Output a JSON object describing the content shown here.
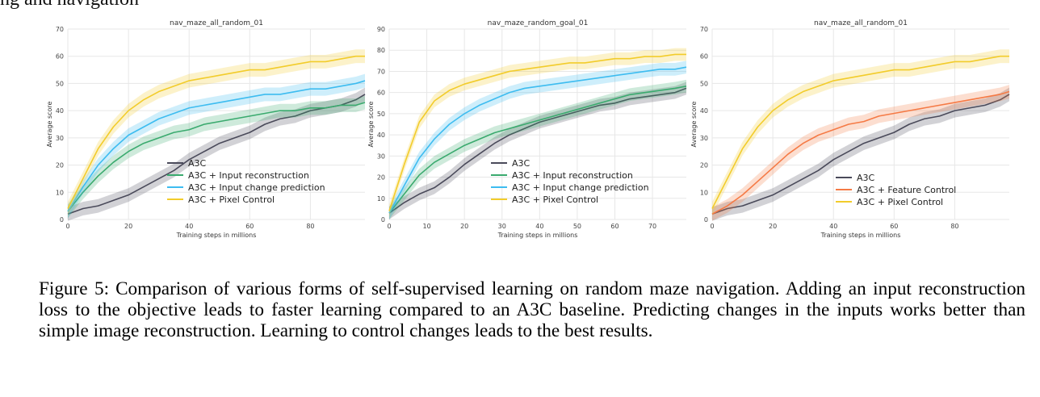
{
  "top_text": "ng and navigation",
  "caption": {
    "label": "Figure 5:",
    "text": "Comparison of various forms of self-supervised learning on random maze navigation. Adding an input reconstruction loss to the objective leads to faster learning compared to an A3C baseline. Predicting changes in the inputs works better than simple image reconstruction. Learning to control changes leads to the best results."
  },
  "colors": {
    "A3C": "#4a4a5a",
    "Input reconstruction": "#3aaa6e",
    "Input change prediction": "#3dbcf0",
    "Pixel Control": "#f2cc2b",
    "Feature Control": "#f57a45"
  },
  "chart_data": [
    {
      "type": "line",
      "title": "nav_maze_all_random_01",
      "xlabel": "Training steps in millions",
      "ylabel": "Average score",
      "xlim": [
        0,
        98
      ],
      "ylim": [
        0,
        70
      ],
      "xticks": [
        0,
        20,
        40,
        60,
        80
      ],
      "yticks": [
        0,
        10,
        20,
        30,
        40,
        50,
        60,
        70
      ],
      "grid": true,
      "legend_position": "bottom-center",
      "x": [
        0,
        5,
        10,
        15,
        20,
        25,
        30,
        35,
        40,
        45,
        50,
        55,
        60,
        65,
        70,
        75,
        80,
        85,
        90,
        95,
        98
      ],
      "series": [
        {
          "name": "A3C",
          "color": "#4a4a5a",
          "values": [
            2,
            4,
            5,
            7,
            9,
            12,
            15,
            18,
            22,
            25,
            28,
            30,
            32,
            35,
            37,
            38,
            40,
            41,
            42,
            44,
            46
          ]
        },
        {
          "name": "A3C + Input reconstruction",
          "color": "#3aaa6e",
          "values": [
            3,
            10,
            16,
            21,
            25,
            28,
            30,
            32,
            33,
            35,
            36,
            37,
            38,
            39,
            40,
            40,
            41,
            41,
            42,
            42,
            43
          ]
        },
        {
          "name": "A3C + Input change prediction",
          "color": "#3dbcf0",
          "values": [
            3,
            12,
            20,
            26,
            31,
            34,
            37,
            39,
            41,
            42,
            43,
            44,
            45,
            46,
            46,
            47,
            48,
            48,
            49,
            50,
            51
          ]
        },
        {
          "name": "A3C + Pixel Control",
          "color": "#f2cc2b",
          "values": [
            4,
            15,
            26,
            34,
            40,
            44,
            47,
            49,
            51,
            52,
            53,
            54,
            55,
            55,
            56,
            57,
            58,
            58,
            59,
            60,
            60
          ]
        }
      ],
      "band_halfwidth": 2.5
    },
    {
      "type": "line",
      "title": "nav_maze_random_goal_01",
      "xlabel": "Training steps in millions",
      "ylabel": "Average score",
      "xlim": [
        0,
        79
      ],
      "ylim": [
        0,
        90
      ],
      "xticks": [
        0,
        10,
        20,
        30,
        40,
        50,
        60,
        70
      ],
      "yticks": [
        0,
        10,
        20,
        30,
        40,
        50,
        60,
        70,
        80,
        90
      ],
      "grid": true,
      "legend_position": "bottom-right",
      "x": [
        0,
        4,
        8,
        12,
        16,
        20,
        24,
        28,
        32,
        36,
        40,
        44,
        48,
        52,
        56,
        60,
        64,
        68,
        72,
        76,
        79
      ],
      "series": [
        {
          "name": "A3C",
          "color": "#4a4a5a",
          "values": [
            3,
            8,
            12,
            15,
            20,
            26,
            31,
            36,
            40,
            43,
            46,
            48,
            50,
            52,
            54,
            55,
            57,
            58,
            59,
            60,
            62
          ]
        },
        {
          "name": "A3C + Input reconstruction",
          "color": "#3aaa6e",
          "values": [
            3,
            12,
            21,
            27,
            31,
            35,
            38,
            41,
            43,
            45,
            47,
            49,
            51,
            53,
            55,
            57,
            59,
            60,
            61,
            62,
            63
          ]
        },
        {
          "name": "A3C + Input change prediction",
          "color": "#3dbcf0",
          "values": [
            3,
            16,
            29,
            38,
            45,
            50,
            54,
            57,
            60,
            62,
            63,
            64,
            65,
            66,
            67,
            68,
            69,
            70,
            71,
            71,
            72
          ]
        },
        {
          "name": "A3C + Pixel Control",
          "color": "#f2cc2b",
          "values": [
            4,
            26,
            46,
            56,
            61,
            64,
            66,
            68,
            70,
            71,
            72,
            73,
            74,
            74,
            75,
            76,
            76,
            77,
            77,
            78,
            78
          ]
        }
      ],
      "band_halfwidth": 3
    },
    {
      "type": "line",
      "title": "nav_maze_all_random_01",
      "xlabel": "Training steps in millions",
      "ylabel": "Average score",
      "xlim": [
        0,
        98
      ],
      "ylim": [
        0,
        70
      ],
      "xticks": [
        0,
        20,
        40,
        60,
        80
      ],
      "yticks": [
        0,
        10,
        20,
        30,
        40,
        50,
        60,
        70
      ],
      "grid": true,
      "legend_position": "bottom-right",
      "x": [
        0,
        5,
        10,
        15,
        20,
        25,
        30,
        35,
        40,
        45,
        50,
        55,
        60,
        65,
        70,
        75,
        80,
        85,
        90,
        95,
        98
      ],
      "series": [
        {
          "name": "A3C",
          "color": "#4a4a5a",
          "values": [
            2,
            4,
            5,
            7,
            9,
            12,
            15,
            18,
            22,
            25,
            28,
            30,
            32,
            35,
            37,
            38,
            40,
            41,
            42,
            44,
            46
          ]
        },
        {
          "name": "A3C + Feature Control",
          "color": "#f57a45",
          "values": [
            2,
            5,
            9,
            14,
            19,
            24,
            28,
            31,
            33,
            35,
            36,
            38,
            39,
            40,
            41,
            42,
            43,
            44,
            45,
            46,
            47
          ]
        },
        {
          "name": "A3C + Pixel Control",
          "color": "#f2cc2b",
          "values": [
            4,
            15,
            26,
            34,
            40,
            44,
            47,
            49,
            51,
            52,
            53,
            54,
            55,
            55,
            56,
            57,
            58,
            58,
            59,
            60,
            60
          ]
        }
      ],
      "band_halfwidth": 2.5
    }
  ]
}
